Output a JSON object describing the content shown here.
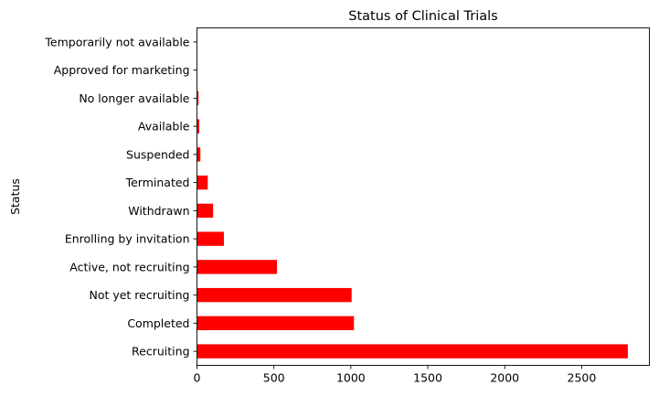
{
  "chart_data": {
    "type": "bar",
    "orientation": "horizontal",
    "title": "Status of Clinical Trials",
    "xlabel": "",
    "ylabel": "Status",
    "categories": [
      "Recruiting",
      "Completed",
      "Not yet recruiting",
      "Active, not recruiting",
      "Enrolling by invitation",
      "Withdrawn",
      "Terminated",
      "Suspended",
      "Available",
      "No longer available",
      "Approved for marketing",
      "Temporarily not available"
    ],
    "values": [
      2800,
      1020,
      1005,
      520,
      175,
      105,
      70,
      22,
      15,
      10,
      2,
      1
    ],
    "xlim": [
      0,
      2940
    ],
    "xticks": [
      0,
      500,
      1000,
      1500,
      2000,
      2500
    ],
    "bar_color": "#ff0000",
    "grid": false,
    "legend": "none"
  }
}
